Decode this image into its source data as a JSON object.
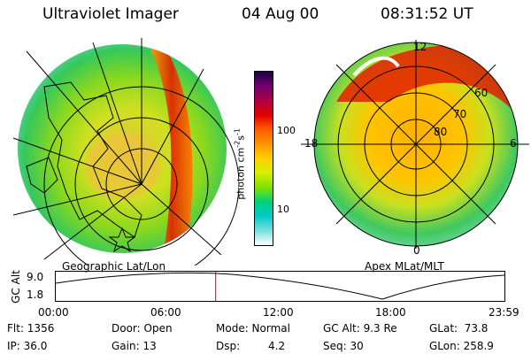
{
  "header": {
    "title": "Ultraviolet Imager",
    "date": "04 Aug 00",
    "time": "08:31:52 UT"
  },
  "left_panel": {
    "caption": "Geographic Lat/Lon"
  },
  "right_panel": {
    "caption": "Apex MLat/MLT",
    "mlt_labels": [
      "12",
      "18",
      "6",
      "0"
    ],
    "mlat_labels": [
      "60",
      "70",
      "80"
    ]
  },
  "colorbar": {
    "unit_prefix": "photon cm",
    "unit_exp1": "-2",
    "unit_mid": "s",
    "unit_exp2": "-1",
    "ticks": [
      "100",
      "10"
    ],
    "colors": [
      "#ffffff",
      "#7fe0e0",
      "#00c8c8",
      "#00d27a",
      "#7fe000",
      "#d8f000",
      "#ffd000",
      "#ff9600",
      "#ff5a00",
      "#e00000",
      "#b00040",
      "#700070",
      "#1a0040"
    ]
  },
  "altitude_plot": {
    "ylabel": "GC Alt",
    "y_ticks": [
      "9.0",
      "1.8"
    ],
    "x_ticks": [
      "00:00",
      "06:00",
      "12:00",
      "18:00",
      "23:59"
    ],
    "marker_time_hours": 8.53
  },
  "stats": {
    "flt": "Flt: 1356",
    "ip": "IP: 36.0",
    "door": "Door: Open",
    "gain": "Gain: 13",
    "mode": "Mode: Normal",
    "dsp_label": "Dsp:",
    "dsp_value": "4.2",
    "gc_alt": "GC Alt: 9.3 Re",
    "seq": "Seq: 30",
    "glat": "GLat:  73.8",
    "glon": "GLon: 258.9"
  }
}
